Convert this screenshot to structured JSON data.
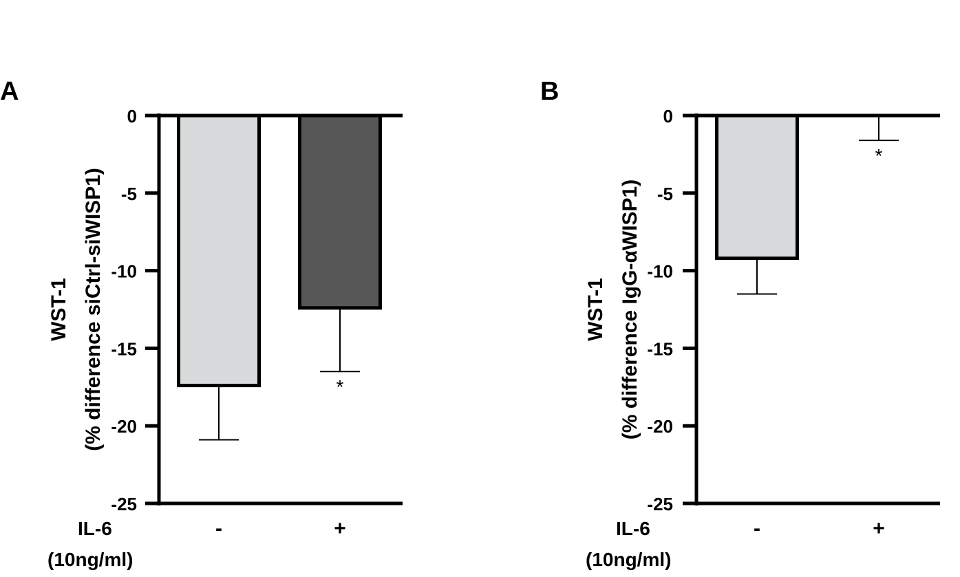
{
  "chart_data": [
    {
      "type": "bar",
      "panel_label": "A",
      "ylabel_line1": "WST-1",
      "ylabel_line2": "(% difference siCtrl-siWISP1)",
      "ylim": [
        -25,
        0
      ],
      "yticks": [
        0,
        -5,
        -10,
        -15,
        -20,
        -25
      ],
      "ytick_labels": [
        "0",
        "-5",
        "-10",
        "-15",
        "-20",
        "-25"
      ],
      "row_label_line1": "IL-6",
      "row_label_line2": "(10ng/ml)",
      "categories": [
        "-",
        "+"
      ],
      "values": [
        -17.4,
        -12.4
      ],
      "errors": [
        3.5,
        4.1
      ],
      "bar_colors": [
        "#d9dadb",
        "#575757"
      ],
      "significance": [
        "",
        "*"
      ],
      "grid": false
    },
    {
      "type": "bar",
      "panel_label": "B",
      "ylabel_line1": "WST-1",
      "ylabel_line2": "(% difference IgG-αWISP1)",
      "ylim": [
        -25,
        0
      ],
      "yticks": [
        0,
        -5,
        -10,
        -15,
        -20,
        -25
      ],
      "ytick_labels": [
        "0",
        "-5",
        "-10",
        "-15",
        "-20",
        "-25"
      ],
      "row_label_line1": "IL-6",
      "row_label_line2": "(10ng/ml)",
      "categories": [
        "-",
        "+"
      ],
      "values": [
        -9.2,
        0
      ],
      "errors": [
        2.3,
        1.6
      ],
      "bar_colors": [
        "#d9dadb",
        "#575757"
      ],
      "significance": [
        "",
        "*"
      ],
      "grid": false
    }
  ]
}
